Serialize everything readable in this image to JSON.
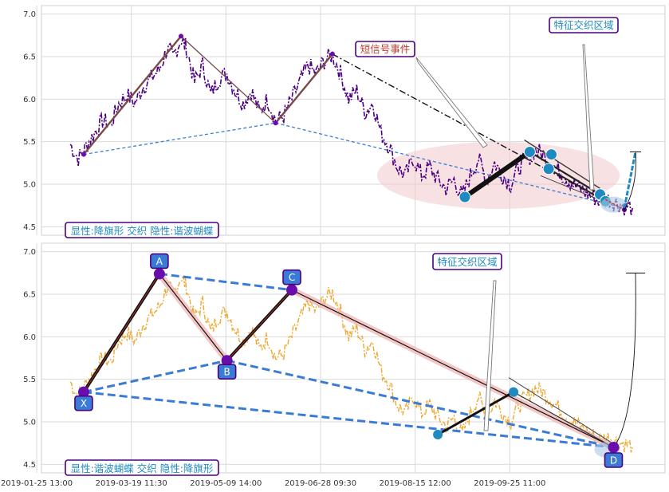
{
  "chart_data": [
    {
      "type": "line",
      "panel": "top",
      "ylim": [
        4.4,
        7.1
      ],
      "yticks": [
        "7.0",
        "6.5",
        "6.0",
        "5.5",
        "5.0",
        "4.5"
      ],
      "grid": true,
      "price_color": "#4b0082",
      "price_series": [
        [
          0,
          5.47
        ],
        [
          3,
          5.3
        ],
        [
          6,
          5.45
        ],
        [
          9,
          5.6
        ],
        [
          12,
          5.75
        ],
        [
          15,
          5.7
        ],
        [
          18,
          5.95
        ],
        [
          21,
          6.05
        ],
        [
          24,
          5.95
        ],
        [
          27,
          6.15
        ],
        [
          30,
          6.25
        ],
        [
          33,
          6.35
        ],
        [
          36,
          6.6
        ],
        [
          38,
          6.5
        ],
        [
          41,
          6.7
        ],
        [
          43,
          6.6
        ],
        [
          46,
          6.2
        ],
        [
          49,
          6.4
        ],
        [
          52,
          6.05
        ],
        [
          55,
          6.25
        ],
        [
          58,
          6.3
        ],
        [
          61,
          6.1
        ],
        [
          64,
          5.95
        ],
        [
          67,
          6.1
        ],
        [
          70,
          5.85
        ],
        [
          73,
          6.0
        ],
        [
          76,
          5.75
        ],
        [
          79,
          5.8
        ],
        [
          82,
          6.0
        ],
        [
          85,
          6.2
        ],
        [
          88,
          6.4
        ],
        [
          91,
          6.3
        ],
        [
          94,
          6.45
        ],
        [
          97,
          6.52
        ],
        [
          100,
          6.3
        ],
        [
          103,
          6.0
        ],
        [
          106,
          6.1
        ],
        [
          109,
          5.85
        ],
        [
          112,
          5.95
        ],
        [
          115,
          5.6
        ],
        [
          118,
          5.45
        ],
        [
          121,
          5.2
        ],
        [
          124,
          5.1
        ],
        [
          127,
          5.3
        ],
        [
          130,
          5.1
        ],
        [
          133,
          5.2
        ],
        [
          136,
          5.05
        ],
        [
          139,
          4.95
        ],
        [
          142,
          5.05
        ],
        [
          145,
          4.85
        ],
        [
          148,
          5.1
        ],
        [
          151,
          5.3
        ],
        [
          154,
          5.05
        ],
        [
          157,
          5.25
        ],
        [
          160,
          5.1
        ],
        [
          163,
          5.0
        ],
        [
          166,
          5.2
        ],
        [
          169,
          5.3
        ],
        [
          172,
          5.4
        ],
        [
          175,
          5.35
        ],
        [
          178,
          5.25
        ],
        [
          181,
          5.15
        ],
        [
          184,
          5.05
        ],
        [
          187,
          4.98
        ],
        [
          190,
          4.92
        ],
        [
          193,
          4.85
        ],
        [
          196,
          4.8
        ],
        [
          199,
          4.82
        ],
        [
          202,
          4.78
        ],
        [
          205,
          4.74
        ],
        [
          208,
          4.72
        ]
      ],
      "zigzag": [
        {
          "x": 5,
          "y": 5.35,
          "label": ""
        },
        {
          "x": 41,
          "y": 6.74,
          "label": ""
        },
        {
          "x": 76,
          "y": 5.72,
          "label": ""
        },
        {
          "x": 97,
          "y": 6.53,
          "label": ""
        }
      ],
      "events": [
        {
          "x": 146,
          "y": 4.85
        },
        {
          "x": 170,
          "y": 5.38
        },
        {
          "x": 178,
          "y": 5.35
        },
        {
          "x": 177,
          "y": 5.18
        },
        {
          "x": 196,
          "y": 4.88
        },
        {
          "x": 198,
          "y": 4.8
        }
      ],
      "annotations": [
        {
          "text": "短信号事件",
          "color": "#c0392b",
          "border": "#4b0082"
        },
        {
          "text": "特征交织区域",
          "color": "#1f8ac0",
          "border": "#4b0082"
        }
      ],
      "caption": "显性:降旗形 交织 隐性:谐波蝴蝶"
    },
    {
      "type": "line",
      "panel": "bottom",
      "ylim": [
        4.4,
        7.1
      ],
      "yticks": [
        "7.0",
        "6.5",
        "6.0",
        "5.5",
        "5.0",
        "4.5"
      ],
      "grid": true,
      "price_color": "#f0a830",
      "pattern_points": [
        {
          "name": "X",
          "x": 5,
          "y": 5.35
        },
        {
          "name": "A",
          "x": 33,
          "y": 6.74
        },
        {
          "name": "B",
          "x": 58,
          "y": 5.72
        },
        {
          "name": "C",
          "x": 82,
          "y": 6.55
        },
        {
          "name": "D",
          "x": 201,
          "y": 4.7
        }
      ],
      "extra_points": [
        {
          "x": 136,
          "y": 4.85
        },
        {
          "x": 164,
          "y": 5.35
        }
      ],
      "annotations": [
        {
          "text": "特征交织区域",
          "color": "#1f8ac0",
          "border": "#4b0082"
        }
      ],
      "caption": "显性:谐波蝴蝶 交织 隐性:降旗形"
    }
  ],
  "x_axis": {
    "tick_labels": [
      "2019-01-25 13:00",
      "2019-03-19 11:30",
      "2019-05-09 14:00",
      "2019-06-28 09:30",
      "2019-08-15 12:00",
      "2019-09-25 11:00"
    ]
  }
}
